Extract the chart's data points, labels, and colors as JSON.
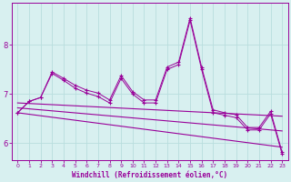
{
  "background_color": "#d8f0f0",
  "line_color": "#990099",
  "grid_color": "#b8dede",
  "xlabel": "Windchill (Refroidissement éolien,°C)",
  "xlabel_color": "#990099",
  "xtick_color": "#990099",
  "ytick_color": "#990099",
  "xlim": [
    -0.5,
    23.5
  ],
  "ylim": [
    5.65,
    8.85
  ],
  "yticks": [
    6,
    7,
    8
  ],
  "xticks": [
    0,
    1,
    2,
    3,
    4,
    5,
    6,
    7,
    8,
    9,
    10,
    11,
    12,
    13,
    14,
    15,
    16,
    17,
    18,
    19,
    20,
    21,
    22,
    23
  ],
  "series1_y": [
    6.62,
    6.85,
    6.93,
    7.45,
    7.32,
    7.18,
    7.08,
    7.02,
    6.88,
    7.38,
    7.05,
    6.88,
    6.88,
    7.55,
    7.65,
    8.55,
    7.55,
    6.68,
    6.62,
    6.58,
    6.32,
    6.32,
    6.65,
    5.82
  ],
  "series2_y": [
    6.62,
    6.85,
    6.93,
    7.42,
    7.28,
    7.12,
    7.02,
    6.95,
    6.82,
    7.32,
    7.0,
    6.82,
    6.82,
    7.5,
    7.6,
    8.5,
    7.5,
    6.62,
    6.57,
    6.52,
    6.27,
    6.27,
    6.6,
    5.78
  ],
  "trend1_y_start": 6.82,
  "trend1_y_end": 6.55,
  "trend2_y_start": 6.72,
  "trend2_y_end": 6.25,
  "trend3_y_start": 6.62,
  "trend3_y_end": 5.92
}
